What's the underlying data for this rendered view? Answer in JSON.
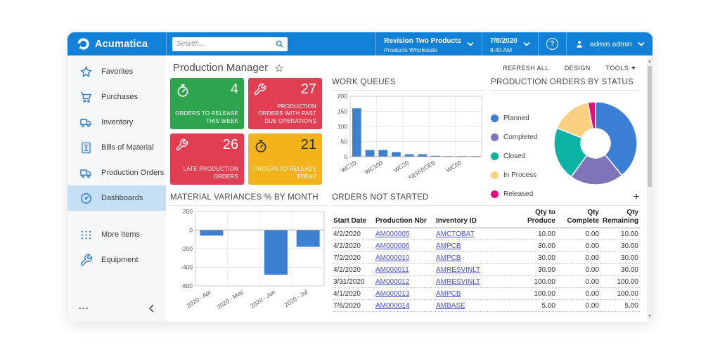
{
  "header": {
    "brand": "Acumatica",
    "search_placeholder": "Search...",
    "company": {
      "name": "Revision Two Products",
      "branch": "Products Wholesale"
    },
    "datetime": {
      "date": "7/8/2020",
      "time": "8:40 AM"
    },
    "help_label": "?",
    "user": "admin admin"
  },
  "sidebar": {
    "items": [
      {
        "label": "Favorites",
        "icon": "star-icon"
      },
      {
        "label": "Purchases",
        "icon": "cart-icon"
      },
      {
        "label": "Inventory",
        "icon": "truck-icon"
      },
      {
        "label": "Bills of Material",
        "icon": "bill-icon"
      },
      {
        "label": "Production Orders",
        "icon": "truck-icon"
      },
      {
        "label": "Dashboards",
        "icon": "gauge-icon",
        "selected": true
      },
      {
        "label": "More Items",
        "icon": "grid-icon",
        "gap_before": true
      },
      {
        "label": "Equipment",
        "icon": "wrench-icon"
      }
    ]
  },
  "page": {
    "title": "Production Manager",
    "actions": {
      "refresh": "REFRESH ALL",
      "design": "DESIGN",
      "tools": "TOOLS"
    }
  },
  "tiles": [
    {
      "value": "4",
      "label": "ORDERS TO RELEASE THIS WEEK",
      "icon": "stopwatch-icon",
      "color": "#2fa44e",
      "icon_color": "#ffffff",
      "num_color": "#ffffff",
      "label_color": "#ffffff"
    },
    {
      "value": "27",
      "label": "PRODUCTION ORDERS WITH PAST DUE OPERATIONS",
      "icon": "wrench-icon",
      "color": "#e13e51",
      "icon_color": "#ffffff",
      "num_color": "#ffffff",
      "label_color": "#ffffff"
    },
    {
      "value": "26",
      "label": "LATE PRODUCTION ORDERS",
      "icon": "wrench-icon",
      "color": "#e13e51",
      "icon_color": "#ffffff",
      "num_color": "#ffffff",
      "label_color": "#ffffff"
    },
    {
      "value": "21",
      "label": "ORDERS TO RELEASE TODAY",
      "icon": "stopwatch-icon",
      "color": "#f5b31b",
      "icon_color": "#2f2f2f",
      "num_color": "#2f2f2f",
      "label_color": "#ffffff"
    }
  ],
  "chart_data": [
    {
      "id": "work_queues",
      "type": "bar",
      "title": "WORK QUEUES",
      "categories": [
        "WC10",
        "",
        "WC100",
        "",
        "WC20",
        "",
        "AASERVICES",
        "",
        "WC60",
        ""
      ],
      "values": [
        160,
        22,
        22,
        15,
        8,
        8,
        3,
        2,
        2,
        2
      ],
      "xlabel": "",
      "ylabel": "",
      "ylim": [
        0,
        200
      ],
      "yticks": [
        0,
        50,
        100,
        150,
        200
      ],
      "bar_color": "#3d7fd0",
      "grid": true,
      "legend_position": "none"
    },
    {
      "id": "production_orders_by_status",
      "type": "pie",
      "title": "PRODUCTION ORDERS BY STATUS",
      "labels": [
        "Planned",
        "Completed",
        "Closed",
        "In Process",
        "Released"
      ],
      "values": [
        39,
        21,
        21,
        16,
        3
      ],
      "colors": [
        "#3a7fd5",
        "#7f74b8",
        "#0ab3a3",
        "#fbd080",
        "#e50e7e"
      ],
      "donut": true,
      "legend_position": "left"
    },
    {
      "id": "material_variances",
      "type": "bar",
      "title": "MATERIAL VARIANCES % BY MONTH",
      "categories": [
        "2020 - Apr",
        "2020 - May",
        "2020 - Jun",
        "2020 - Jul"
      ],
      "values": [
        -60,
        0,
        -480,
        -180
      ],
      "xlabel": "",
      "ylabel": "",
      "ylim": [
        -600,
        200
      ],
      "yticks": [
        200,
        0,
        -200,
        -400,
        -600
      ],
      "bar_color": "#3d7fd0",
      "grid": true,
      "legend_position": "none"
    }
  ],
  "orders_table": {
    "title": "ORDERS NOT STARTED",
    "add_button": "+",
    "columns": [
      {
        "label": "Start Date",
        "align": "left"
      },
      {
        "label": "Production Nbr",
        "align": "left",
        "link": true
      },
      {
        "label": "Inventory ID",
        "align": "left",
        "link": true
      },
      {
        "label": "Qty to Produce",
        "align": "right"
      },
      {
        "label": "Qty Complete",
        "align": "right"
      },
      {
        "label": "Qty Remaining",
        "align": "right"
      }
    ],
    "rows": [
      [
        "4/2/2020",
        "AM000005",
        "AMCTOBAT",
        "10.00",
        "0.00",
        "10.00"
      ],
      [
        "4/2/2020",
        "AM000006",
        "AMPCB",
        "30.00",
        "0.00",
        "30.00"
      ],
      [
        "7/2/2020",
        "AM000010",
        "AMPCB",
        "30.00",
        "0.00",
        "30.00"
      ],
      [
        "4/2/2020",
        "AM000011",
        "AMRESVINLT",
        "30.00",
        "0.00",
        "30.00"
      ],
      [
        "3/31/2020",
        "AM000012",
        "AMRESVINLT",
        "100.00",
        "0.00",
        "100.00"
      ],
      [
        "4/1/2020",
        "AM000013",
        "AMPCB",
        "100.00",
        "0.00",
        "100.00"
      ],
      [
        "7/6/2020",
        "AM000014",
        "AMBASE",
        "5.00",
        "0.00",
        "5.00"
      ]
    ]
  },
  "colors": {
    "header_blue": "#1181d7",
    "selected_nav": "#c5e0f4",
    "link": "#4a50cf",
    "chart_bar": "#3d7fd0"
  }
}
